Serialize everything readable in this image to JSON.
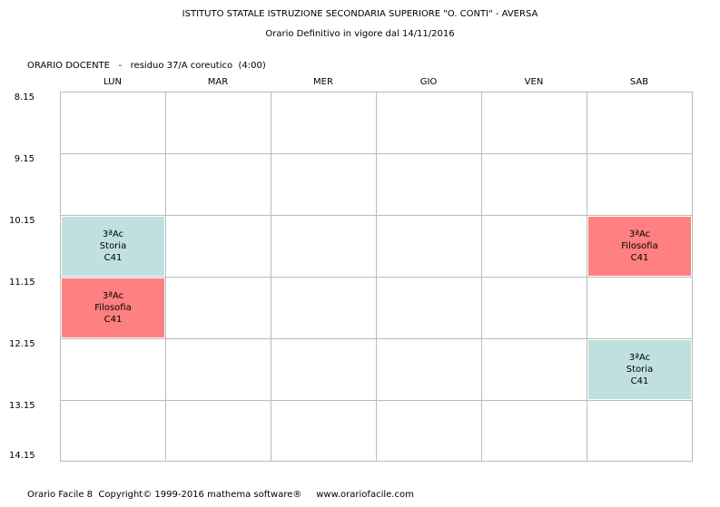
{
  "header": {
    "school": "ISTITUTO STATALE ISTRUZIONE SECONDARIA SUPERIORE \"O. CONTI\" - AVERSA",
    "schedule": "Orario Definitivo in vigore dal 14/11/2016"
  },
  "teacher_line": "ORARIO DOCENTE   -   residuo 37/A coreutico  (4:00)",
  "days": [
    "LUN",
    "MAR",
    "MER",
    "GIO",
    "VEN",
    "SAB"
  ],
  "times": [
    "8.15",
    "9.15",
    "10.15",
    "11.15",
    "12.15",
    "13.15",
    "14.15"
  ],
  "lessons": [
    {
      "day": "LUN",
      "slot": "10.15",
      "class": "3ªAc",
      "subject": "Storia",
      "room": "C41",
      "color": "#c0e0e0"
    },
    {
      "day": "LUN",
      "slot": "11.15",
      "class": "3ªAc",
      "subject": "Filosofia",
      "room": "C41",
      "color": "#ff8080"
    },
    {
      "day": "SAB",
      "slot": "10.15",
      "class": "3ªAc",
      "subject": "Filosofia",
      "room": "C41",
      "color": "#ff8080"
    },
    {
      "day": "SAB",
      "slot": "12.15",
      "class": "3ªAc",
      "subject": "Storia",
      "room": "C41",
      "color": "#c0e0e0"
    }
  ],
  "footer": "Orario Facile 8  Copyright© 1999-2016 mathema software®     www.orariofacile.com"
}
